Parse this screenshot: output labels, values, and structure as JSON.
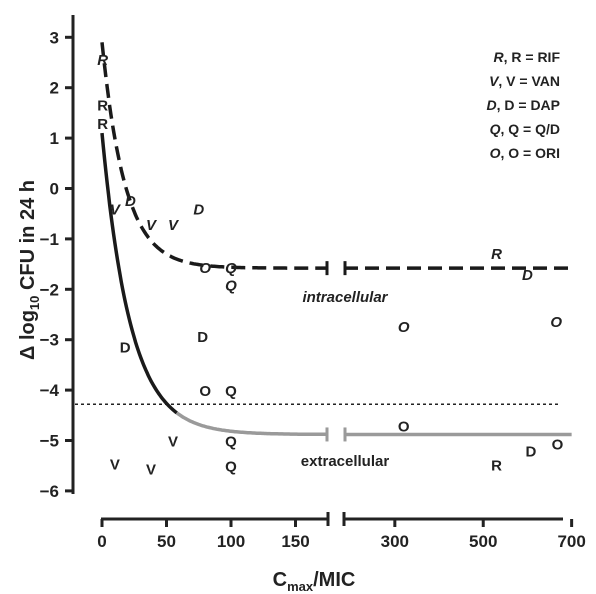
{
  "chart_data": {
    "type": "scatter",
    "xlabel": "C",
    "xlabel_sub": "max",
    "xlabel_rest": "/MIC",
    "ylabel": "Δ log",
    "ylabel_sub": "10",
    "ylabel_rest": " CFU in 24 h",
    "ylim": [
      -6,
      3.4
    ],
    "y_ticks": [
      3,
      2,
      1,
      0,
      -1,
      -2,
      -3,
      -4,
      -5,
      -6
    ],
    "x_broken_axis": true,
    "x_ticks": [
      {
        "label": "0",
        "value": 0
      },
      {
        "label": "50",
        "value": 50
      },
      {
        "label": "100",
        "value": 100
      },
      {
        "label": "150",
        "value": 150
      },
      {
        "label": "300",
        "value": 300
      },
      {
        "label": "500",
        "value": 500
      },
      {
        "label": "700",
        "value": 700
      }
    ],
    "legend": [
      {
        "italic": "R",
        "normal": ", R = RIF"
      },
      {
        "italic": "V",
        "normal": ", V = VAN"
      },
      {
        "italic": "D",
        "normal": ", D = DAP"
      },
      {
        "italic": "Q",
        "normal": ", Q = Q/D"
      },
      {
        "italic": "O",
        "normal": ", O = ORI"
      }
    ],
    "legend_position": "top-right",
    "annotations": {
      "intracellular": "intracellular",
      "extracellular": "extracellular"
    },
    "reference_line_y": -4.28,
    "curves": [
      {
        "name": "intracellular",
        "style": "dashed",
        "plateau": -1.58
      },
      {
        "name": "extracellular",
        "style": "solid",
        "plateau": -4.88
      }
    ],
    "intracellular_points": [
      {
        "label": "R",
        "x": 0.5,
        "y": 2.55
      },
      {
        "label": "D",
        "x": 22,
        "y": -0.25
      },
      {
        "label": "V",
        "x": 10,
        "y": -0.42
      },
      {
        "label": "V",
        "x": 38,
        "y": -0.72
      },
      {
        "label": "V",
        "x": 55,
        "y": -0.72
      },
      {
        "label": "D",
        "x": 75,
        "y": -0.42
      },
      {
        "label": "O",
        "x": 80,
        "y": -1.58
      },
      {
        "label": "Q",
        "x": 100,
        "y": -1.58
      },
      {
        "label": "Q",
        "x": 100,
        "y": -1.92
      },
      {
        "label": "R",
        "x": 530,
        "y": -1.3
      },
      {
        "label": "D",
        "x": 600,
        "y": -1.72
      },
      {
        "label": "O",
        "x": 320,
        "y": -2.75
      },
      {
        "label": "O",
        "x": 665,
        "y": -2.65
      }
    ],
    "extracellular_points": [
      {
        "label": "R",
        "x": 0.5,
        "y": 1.65
      },
      {
        "label": "R",
        "x": 0.5,
        "y": 1.28
      },
      {
        "label": "D",
        "x": 18,
        "y": -3.15
      },
      {
        "label": "D",
        "x": 78,
        "y": -2.95
      },
      {
        "label": "O",
        "x": 80,
        "y": -4.02
      },
      {
        "label": "Q",
        "x": 100,
        "y": -4.02
      },
      {
        "label": "V",
        "x": 55,
        "y": -5.02
      },
      {
        "label": "Q",
        "x": 100,
        "y": -5.02
      },
      {
        "label": "V",
        "x": 10,
        "y": -5.48
      },
      {
        "label": "V",
        "x": 38,
        "y": -5.58
      },
      {
        "label": "Q",
        "x": 100,
        "y": -5.52
      },
      {
        "label": "O",
        "x": 320,
        "y": -4.72
      },
      {
        "label": "R",
        "x": 530,
        "y": -5.5
      },
      {
        "label": "D",
        "x": 608,
        "y": -5.22
      },
      {
        "label": "O",
        "x": 668,
        "y": -5.08
      }
    ]
  }
}
